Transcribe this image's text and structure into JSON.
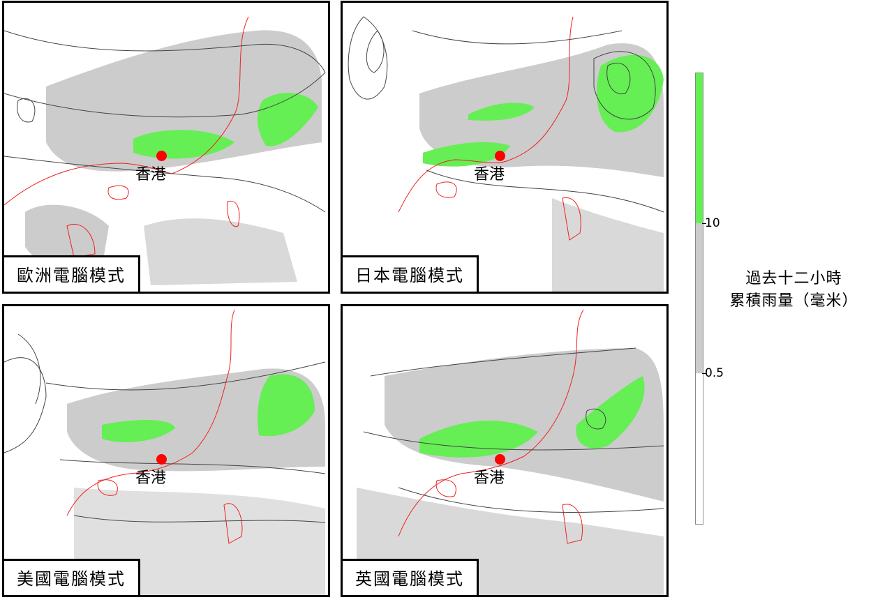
{
  "panels": [
    {
      "label": "歐洲電腦模式",
      "place": "香港"
    },
    {
      "label": "日本電腦模式",
      "place": "香港"
    },
    {
      "label": "美國電腦模式",
      "place": "香港"
    },
    {
      "label": "英國電腦模式",
      "place": "香港"
    }
  ],
  "legend": {
    "title_line1": "過去十二小時",
    "title_line2": "累積雨量（毫米）",
    "tick_high": "10",
    "tick_low": "0.5",
    "colors": {
      "heavy": "#66ee55",
      "light": "#cccccc",
      "none": "#ffffff"
    }
  },
  "colors": {
    "coast": "#ee2222",
    "isobar": "#444444",
    "marker": "#ff0000"
  }
}
